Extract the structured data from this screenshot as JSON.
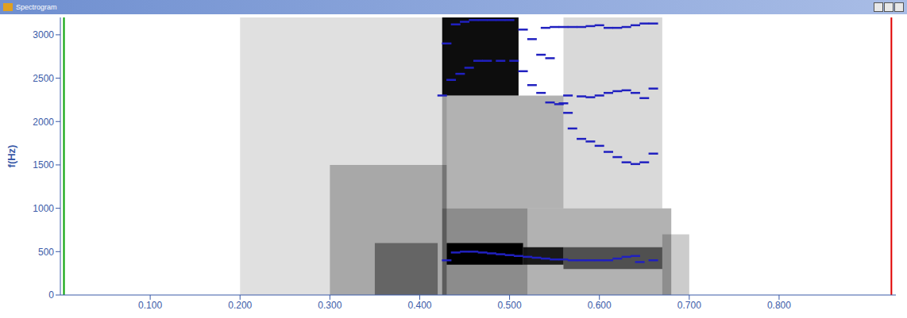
{
  "window_title": "Spectrogram",
  "chart_data": {
    "type": "spectrogram",
    "y_label": "f(Hz)",
    "xlim": [
      0,
      0.93
    ],
    "xticks": [
      {
        "value": 0.1,
        "label": "0.100"
      },
      {
        "value": 0.2,
        "label": "0.200"
      },
      {
        "value": 0.3,
        "label": "0.300"
      },
      {
        "value": 0.4,
        "label": "0.400"
      },
      {
        "value": 0.5,
        "label": "0.500"
      },
      {
        "value": 0.6,
        "label": "0.600"
      },
      {
        "value": 0.7,
        "label": "0.700"
      },
      {
        "value": 0.8,
        "label": "0.800"
      }
    ],
    "ylim": [
      0,
      3200
    ],
    "yticks": [
      0,
      500,
      1000,
      1500,
      2000,
      2500,
      3000
    ],
    "grid": false,
    "intensity_regions": [
      {
        "x": [
          0.2,
          0.43
        ],
        "y": [
          0,
          3200
        ],
        "level": 0.12
      },
      {
        "x": [
          0.3,
          0.43
        ],
        "y": [
          0,
          1500
        ],
        "level": 0.25
      },
      {
        "x": [
          0.35,
          0.42
        ],
        "y": [
          0,
          600
        ],
        "level": 0.4
      },
      {
        "x": [
          0.425,
          0.51
        ],
        "y": [
          2300,
          3200
        ],
        "level": 0.95
      },
      {
        "x": [
          0.425,
          0.52
        ],
        "y": [
          0,
          1000
        ],
        "level": 0.45
      },
      {
        "x": [
          0.43,
          0.515
        ],
        "y": [
          350,
          600
        ],
        "level": 1.0
      },
      {
        "x": [
          0.515,
          0.56
        ],
        "y": [
          350,
          550
        ],
        "level": 0.85
      },
      {
        "x": [
          0.56,
          0.67
        ],
        "y": [
          300,
          550
        ],
        "level": 0.55
      },
      {
        "x": [
          0.52,
          0.68
        ],
        "y": [
          0,
          1000
        ],
        "level": 0.3
      },
      {
        "x": [
          0.425,
          0.56
        ],
        "y": [
          1000,
          2300
        ],
        "level": 0.3
      },
      {
        "x": [
          0.56,
          0.67
        ],
        "y": [
          1000,
          3200
        ],
        "level": 0.15
      },
      {
        "x": [
          0.67,
          0.7
        ],
        "y": [
          0,
          700
        ],
        "level": 0.2
      }
    ],
    "cursors": [
      {
        "x": 0.004,
        "color": "#00a000"
      },
      {
        "x": 0.925,
        "color": "#e00000"
      }
    ],
    "series": [
      {
        "color": "#2020c0",
        "marker": "dash",
        "x": [
          0.43,
          0.44,
          0.45,
          0.46,
          0.47,
          0.48,
          0.49,
          0.5,
          0.51,
          0.52,
          0.53,
          0.54,
          0.55,
          0.56,
          0.57,
          0.58,
          0.59,
          0.6,
          0.61,
          0.62,
          0.63,
          0.64,
          0.645,
          0.66
        ],
        "values": [
          400,
          490,
          500,
          500,
          490,
          480,
          470,
          460,
          450,
          440,
          430,
          420,
          410,
          410,
          400,
          400,
          400,
          400,
          400,
          420,
          440,
          450,
          380,
          400
        ]
      },
      {
        "color": "#2020c0",
        "marker": "dash",
        "x": [
          0.425,
          0.435,
          0.445,
          0.455,
          0.465,
          0.475,
          0.49,
          0.505,
          0.515,
          0.525,
          0.535,
          0.545,
          0.555,
          0.56,
          0.565,
          0.57,
          0.58,
          0.59,
          0.6,
          0.61,
          0.62,
          0.63,
          0.64,
          0.65,
          0.66
        ],
        "values": [
          2300,
          2480,
          2550,
          2620,
          2700,
          2700,
          2700,
          2700,
          2580,
          2420,
          2330,
          2220,
          2200,
          2210,
          2100,
          1920,
          1800,
          1770,
          1720,
          1650,
          1590,
          1530,
          1510,
          1530,
          1630
        ]
      },
      {
        "color": "#2020c0",
        "marker": "dash",
        "x": [
          0.43,
          0.44,
          0.45,
          0.46,
          0.47,
          0.48,
          0.49,
          0.5,
          0.515,
          0.525,
          0.535,
          0.545,
          0.565,
          0.58,
          0.59,
          0.6,
          0.61,
          0.62,
          0.63,
          0.64,
          0.65,
          0.66
        ],
        "values": [
          2900,
          3120,
          3150,
          3170,
          3170,
          3170,
          3170,
          3170,
          3060,
          2950,
          2770,
          2730,
          2300,
          2290,
          2280,
          2300,
          2330,
          2350,
          2360,
          2330,
          2270,
          2380
        ]
      },
      {
        "color": "#2020c0",
        "marker": "dash",
        "x": [
          0.54,
          0.55,
          0.56,
          0.57,
          0.58,
          0.59,
          0.6,
          0.61,
          0.62,
          0.63,
          0.64,
          0.65,
          0.66
        ],
        "values": [
          3080,
          3090,
          3090,
          3090,
          3090,
          3100,
          3110,
          3080,
          3080,
          3090,
          3110,
          3130,
          3130
        ]
      }
    ]
  }
}
